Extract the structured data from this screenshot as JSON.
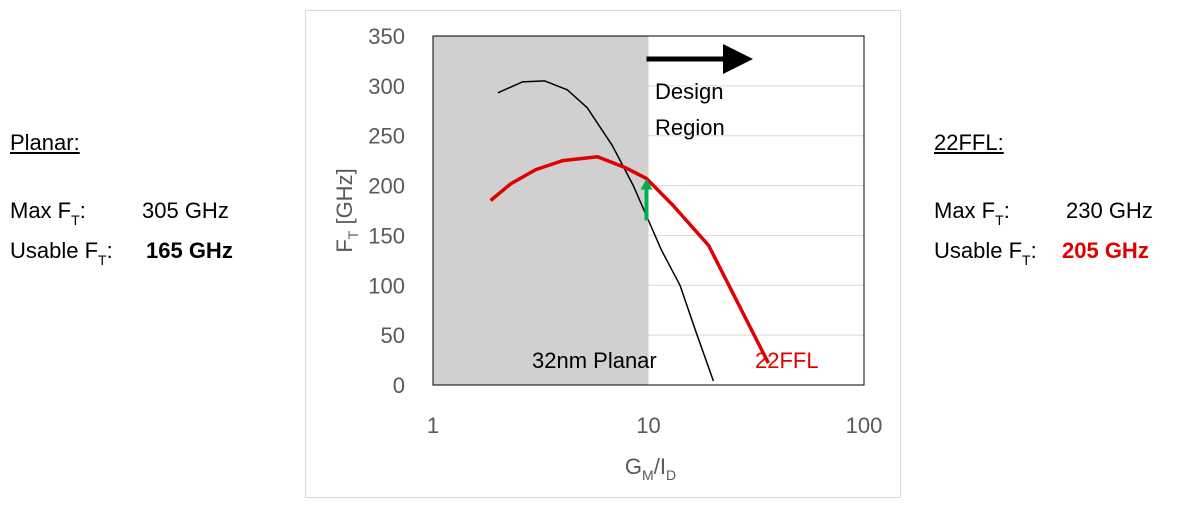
{
  "planar": {
    "heading": "Planar:",
    "max_label_main": "Max F",
    "max_label_sub": "T",
    "max_label_colon": ":",
    "max_value": "305 GHz",
    "usable_label_main": "Usable F",
    "usable_label_sub": "T",
    "usable_label_colon": ":",
    "usable_value": "165 GHz"
  },
  "ffl": {
    "heading": "22FFL:",
    "max_label_main": "Max F",
    "max_label_sub": "T",
    "max_label_colon": ":",
    "max_value": "230 GHz",
    "usable_label_main": "Usable F",
    "usable_label_sub": "T",
    "usable_label_colon": ":",
    "usable_value": "205 GHz",
    "usable_value_color": "#e00000"
  },
  "chart_data": {
    "type": "line",
    "x_scale": "log",
    "xlim": [
      1,
      100
    ],
    "ylim": [
      0,
      350
    ],
    "x_ticks": [
      "1",
      "10",
      "100"
    ],
    "y_ticks": [
      "0",
      "50",
      "100",
      "150",
      "200",
      "250",
      "300",
      "350"
    ],
    "xlabel_main": "G",
    "xlabel_sub1": "M",
    "xlabel_mid": "/I",
    "xlabel_sub2": "D",
    "ylabel_main": "F",
    "ylabel_sub": "T",
    "ylabel_rest": " [GHz]",
    "grid": "horizontal",
    "shaded_region": {
      "x_from": 1,
      "x_to": 10,
      "color": "#d0d0d0"
    },
    "annotations": {
      "design_region_line1": "Design",
      "design_region_line2": "Region",
      "arrow_color": "#00b050"
    },
    "series": [
      {
        "name": "32nm Planar",
        "color": "#000000",
        "points": [
          [
            2.0,
            293
          ],
          [
            2.6,
            304
          ],
          [
            3.3,
            305
          ],
          [
            4.2,
            296
          ],
          [
            5.2,
            278
          ],
          [
            6.8,
            240
          ],
          [
            8.5,
            200
          ],
          [
            10.0,
            165
          ],
          [
            11.5,
            135
          ],
          [
            14.0,
            100
          ],
          [
            16.5,
            55
          ],
          [
            20.0,
            4
          ]
        ]
      },
      {
        "name": "22FFL",
        "color": "#e00000",
        "points": [
          [
            1.85,
            185
          ],
          [
            2.3,
            202
          ],
          [
            3.0,
            216
          ],
          [
            4.0,
            225
          ],
          [
            5.8,
            229
          ],
          [
            7.8,
            218
          ],
          [
            9.8,
            207
          ],
          [
            13.0,
            180
          ],
          [
            19.0,
            140
          ],
          [
            36.0,
            22
          ]
        ]
      }
    ]
  }
}
